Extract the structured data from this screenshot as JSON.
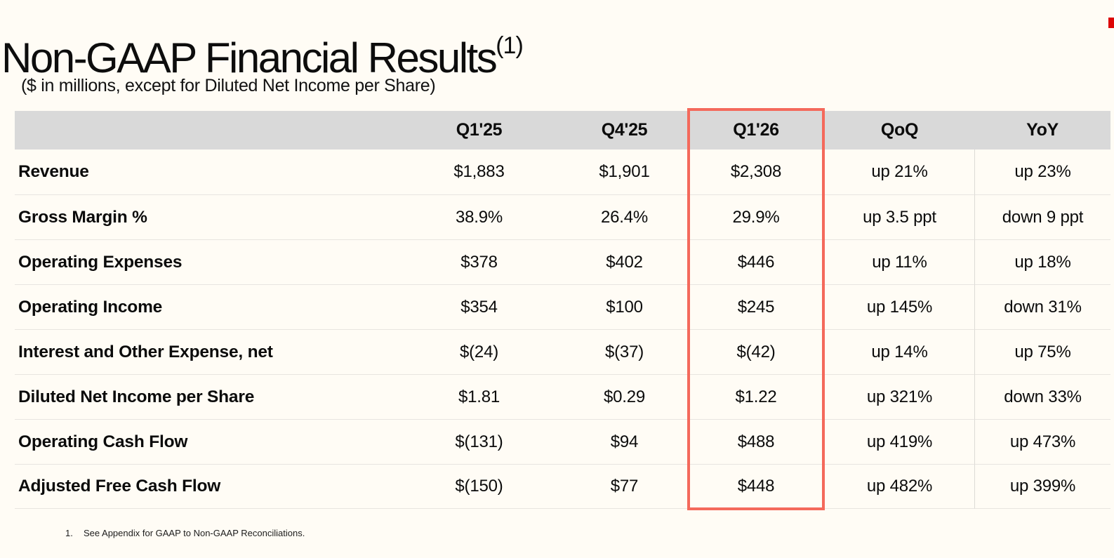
{
  "page": {
    "title": "Non-GAAP Financial Results",
    "title_superscript": "(1)",
    "subtitle": "($ in millions, except for Diluted Net Income per Share)",
    "footnote_number": "1.",
    "footnote_text": "See Appendix for GAAP to Non-GAAP Reconciliations."
  },
  "colors": {
    "background": "#FFFCF5",
    "header_bg": "#D9D9D9",
    "row_line": "#E8E5E0",
    "col_line": "#DCDAD5",
    "highlight_border": "#F4695B",
    "logo_red": "#DD0505",
    "text": "#0B0B0B"
  },
  "table": {
    "columns": [
      "",
      "Q1'25",
      "Q4'25",
      "Q1'26",
      "QoQ",
      "YoY"
    ],
    "highlighted_column": "Q1'26",
    "rows": [
      {
        "label": "Revenue",
        "q125": "$1,883",
        "q425": "$1,901",
        "q126": "$2,308",
        "qoq": "up 21%",
        "yoy": "up 23%"
      },
      {
        "label": "Gross Margin %",
        "q125": "38.9%",
        "q425": "26.4%",
        "q126": "29.9%",
        "qoq": "up 3.5 ppt",
        "yoy": "down 9 ppt"
      },
      {
        "label": "Operating Expenses",
        "q125": "$378",
        "q425": "$402",
        "q126": "$446",
        "qoq": "up 11%",
        "yoy": "up 18%"
      },
      {
        "label": "Operating Income",
        "q125": "$354",
        "q425": "$100",
        "q126": "$245",
        "qoq": "up 145%",
        "yoy": "down 31%"
      },
      {
        "label": "Interest and Other Expense, net",
        "q125": "$(24)",
        "q425": "$(37)",
        "q126": "$(42)",
        "qoq": "up 14%",
        "yoy": "up 75%"
      },
      {
        "label": "Diluted Net Income per Share",
        "q125": "$1.81",
        "q425": "$0.29",
        "q126": "$1.22",
        "qoq": "up 321%",
        "yoy": "down 33%"
      },
      {
        "label": "Operating Cash Flow",
        "q125": "$(131)",
        "q425": "$94",
        "q126": "$488",
        "qoq": "up 419%",
        "yoy": "up 473%"
      },
      {
        "label": "Adjusted Free Cash Flow",
        "q125": "$(150)",
        "q425": "$77",
        "q126": "$448",
        "qoq": "up 482%",
        "yoy": "up 399%"
      }
    ]
  }
}
